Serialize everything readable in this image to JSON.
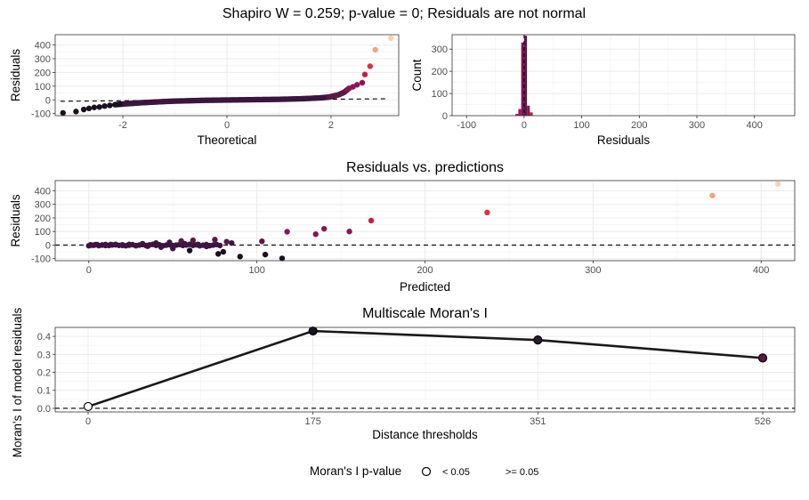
{
  "page_title": "Shapiro W = 0.259; p-value = 0; Residuals are not normal",
  "legend": {
    "title": "Moran's I p-value",
    "items": [
      {
        "label": "< 0.05",
        "fill": "#ffffff"
      },
      {
        "label": ">= 0.05",
        "fill": "none"
      }
    ]
  },
  "colors": {
    "dark": "#1a1021",
    "purple": "#3d1541",
    "magenta": "#8a1654",
    "red": "#e0303b",
    "salmon": "#f4a47f",
    "peach": "#f9d2b4",
    "line": "#1a1a1a"
  },
  "chart_data": [
    {
      "type": "scatter",
      "id": "qq",
      "title": "",
      "xlabel": "Theoretical",
      "ylabel": "Residuals",
      "xlim": [
        -3.3,
        3.3
      ],
      "ylim": [
        -115,
        475
      ],
      "xticks": [
        -2,
        0,
        2
      ],
      "yticks": [
        -100,
        0,
        100,
        200,
        300,
        400
      ],
      "reference_line": {
        "x": [
          -3.2,
          3.1
        ],
        "y": [
          -10,
          8
        ],
        "style": "dashed"
      },
      "points": [
        {
          "x": -3.15,
          "y": -95
        },
        {
          "x": -2.9,
          "y": -85
        },
        {
          "x": -2.75,
          "y": -70
        },
        {
          "x": -2.65,
          "y": -62
        },
        {
          "x": -2.55,
          "y": -55
        },
        {
          "x": -2.45,
          "y": -52
        },
        {
          "x": -2.35,
          "y": -45
        },
        {
          "x": -2.25,
          "y": -40
        },
        {
          "x": -2.15,
          "y": -35
        },
        {
          "x": -2.0,
          "y": -30
        },
        {
          "x": -1.8,
          "y": -25
        },
        {
          "x": -1.6,
          "y": -20
        },
        {
          "x": -1.4,
          "y": -16
        },
        {
          "x": -1.2,
          "y": -12
        },
        {
          "x": -1.0,
          "y": -9
        },
        {
          "x": -0.8,
          "y": -7
        },
        {
          "x": -0.6,
          "y": -5
        },
        {
          "x": -0.4,
          "y": -3
        },
        {
          "x": -0.2,
          "y": -2
        },
        {
          "x": 0.0,
          "y": -1
        },
        {
          "x": 0.2,
          "y": 0
        },
        {
          "x": 0.4,
          "y": 1
        },
        {
          "x": 0.6,
          "y": 2
        },
        {
          "x": 0.8,
          "y": 3
        },
        {
          "x": 1.0,
          "y": 4
        },
        {
          "x": 1.2,
          "y": 6
        },
        {
          "x": 1.4,
          "y": 8
        },
        {
          "x": 1.6,
          "y": 11
        },
        {
          "x": 1.8,
          "y": 15
        },
        {
          "x": 1.95,
          "y": 20
        },
        {
          "x": 2.05,
          "y": 28
        },
        {
          "x": 2.15,
          "y": 38
        },
        {
          "x": 2.25,
          "y": 55
        },
        {
          "x": 2.35,
          "y": 85
        },
        {
          "x": 2.42,
          "y": 95
        },
        {
          "x": 2.5,
          "y": 110
        },
        {
          "x": 2.6,
          "y": 125
        },
        {
          "x": 2.65,
          "y": 185
        },
        {
          "x": 2.75,
          "y": 245
        },
        {
          "x": 2.85,
          "y": 365
        },
        {
          "x": 3.15,
          "y": 450
        }
      ]
    },
    {
      "type": "bar",
      "id": "hist",
      "title": "",
      "xlabel": "Residuals",
      "ylabel": "Count",
      "xlim": [
        -125,
        470
      ],
      "ylim": [
        0,
        365
      ],
      "xticks": [
        -100,
        0,
        100,
        200,
        300,
        400
      ],
      "yticks": [
        0,
        100,
        200,
        300
      ],
      "bins": [
        {
          "x0": -15,
          "x1": -10,
          "count": 8
        },
        {
          "x0": -10,
          "x1": -5,
          "count": 30
        },
        {
          "x0": -5,
          "x1": 0,
          "count": 330
        },
        {
          "x0": 0,
          "x1": 5,
          "count": 360
        },
        {
          "x0": 5,
          "x1": 10,
          "count": 45
        },
        {
          "x0": 10,
          "x1": 15,
          "count": 15
        }
      ],
      "reference_line": {
        "x": 0,
        "style": "dashed"
      }
    },
    {
      "type": "scatter",
      "id": "resid-pred",
      "title": "Residuals vs. predictions",
      "xlabel": "Predicted",
      "ylabel": "Residuals",
      "xlim": [
        -20,
        420
      ],
      "ylim": [
        -115,
        475
      ],
      "xticks": [
        0,
        100,
        200,
        300,
        400
      ],
      "yticks": [
        -100,
        0,
        100,
        200,
        300,
        400
      ],
      "reference_line": {
        "y": 0,
        "style": "dashed"
      },
      "points": [
        {
          "x": 1,
          "y": 2
        },
        {
          "x": 3,
          "y": -1
        },
        {
          "x": 5,
          "y": 3
        },
        {
          "x": 8,
          "y": 1
        },
        {
          "x": 10,
          "y": -3
        },
        {
          "x": 13,
          "y": 4
        },
        {
          "x": 16,
          "y": 2
        },
        {
          "x": 20,
          "y": -2
        },
        {
          "x": 24,
          "y": 5
        },
        {
          "x": 28,
          "y": -4
        },
        {
          "x": 32,
          "y": 10
        },
        {
          "x": 35,
          "y": -8
        },
        {
          "x": 40,
          "y": 15
        },
        {
          "x": 43,
          "y": -15
        },
        {
          "x": 48,
          "y": 20
        },
        {
          "x": 50,
          "y": -25
        },
        {
          "x": 55,
          "y": 30
        },
        {
          "x": 57,
          "y": 10
        },
        {
          "x": 60,
          "y": -40
        },
        {
          "x": 62,
          "y": 35
        },
        {
          "x": 65,
          "y": 5
        },
        {
          "x": 70,
          "y": -10
        },
        {
          "x": 75,
          "y": 40
        },
        {
          "x": 77,
          "y": -65
        },
        {
          "x": 80,
          "y": -50
        },
        {
          "x": 82,
          "y": 25
        },
        {
          "x": 85,
          "y": 15
        },
        {
          "x": 90,
          "y": -85
        },
        {
          "x": 103,
          "y": 28
        },
        {
          "x": 105,
          "y": -70
        },
        {
          "x": 115,
          "y": -98
        },
        {
          "x": 118,
          "y": 98
        },
        {
          "x": 135,
          "y": 80
        },
        {
          "x": 140,
          "y": 120
        },
        {
          "x": 155,
          "y": 100
        },
        {
          "x": 168,
          "y": 180
        },
        {
          "x": 237,
          "y": 240
        },
        {
          "x": 371,
          "y": 365
        },
        {
          "x": 410,
          "y": 450
        }
      ]
    },
    {
      "type": "line",
      "id": "moran",
      "title": "Multiscale Moran's I",
      "xlabel": "Distance thresholds",
      "ylabel": "Moran's I of model residuals",
      "x_categories": [
        "0",
        "175",
        "351",
        "526"
      ],
      "ylim": [
        -0.02,
        0.45
      ],
      "yticks": [
        0.0,
        0.1,
        0.2,
        0.3,
        0.4
      ],
      "reference_line": {
        "y": 0,
        "style": "dashed"
      },
      "series": [
        {
          "values": [
            0.01,
            0.43,
            0.38,
            0.28
          ],
          "point_fills": [
            "#ffffff",
            "#1a1021",
            "#2a1a2e",
            "#5a1a45"
          ]
        }
      ]
    }
  ]
}
